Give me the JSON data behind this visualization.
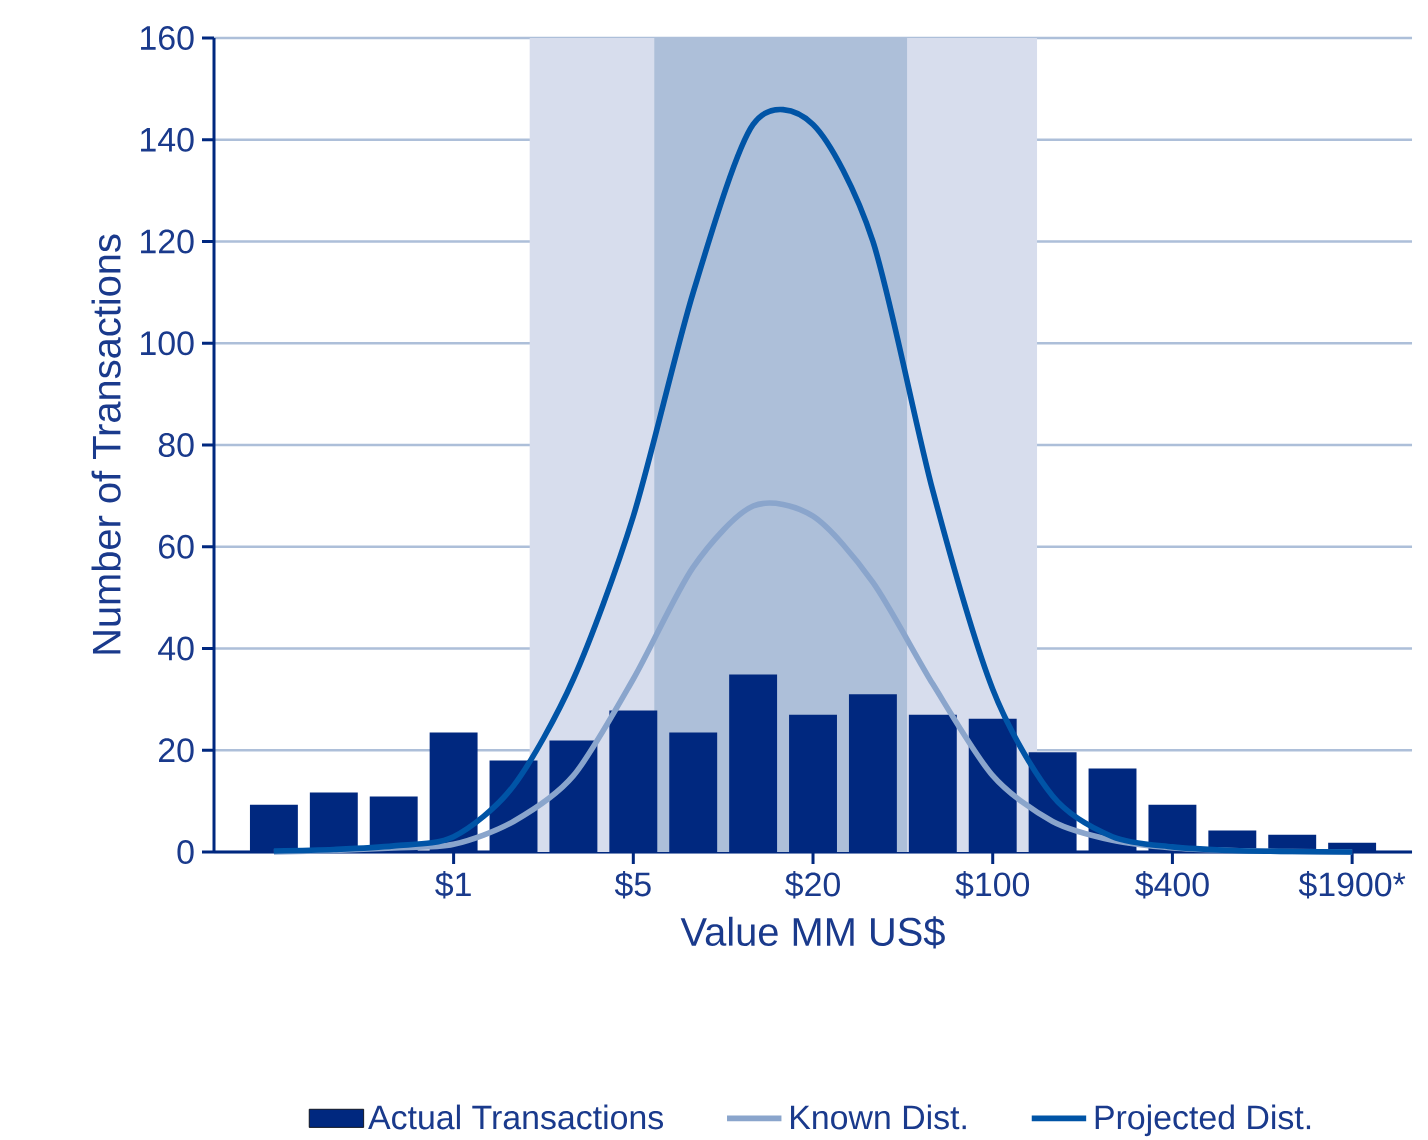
{
  "chart_data": {
    "type": "bar",
    "xlabel": "Value MM US$",
    "ylabel": "Number of Transactions",
    "categories": [
      null,
      null,
      null,
      "$1",
      null,
      null,
      "$5",
      null,
      null,
      "$20",
      null,
      null,
      "$100",
      null,
      null,
      "$400",
      null,
      null,
      "$1900*"
    ],
    "series": [
      {
        "name": "Actual Transactions",
        "color": "#00287f",
        "values": [
          9.3,
          11.7,
          10.9,
          23.5,
          18.0,
          21.9,
          27.8,
          23.5,
          34.9,
          27.0,
          31.0,
          27.0,
          26.2,
          19.6,
          16.4,
          9.3,
          4.2,
          3.4,
          1.8
        ]
      },
      {
        "name": "Known Dist.",
        "type": "line",
        "color": "#8aa5cc",
        "values": [
          0,
          0.3,
          0.8,
          1.5,
          6,
          15,
          34,
          56,
          68,
          66,
          53,
          33,
          15,
          6,
          2.3,
          0.8,
          0.3,
          0.1,
          0
        ]
      },
      {
        "name": "Projected Dist.",
        "type": "line",
        "color": "#0054a6",
        "values": [
          0.2,
          0.5,
          1.2,
          3,
          13,
          34,
          66,
          110,
          143,
          143,
          120,
          71,
          32,
          11,
          3,
          1,
          0.3,
          0.1,
          0
        ]
      }
    ],
    "ylim": [
      0,
      160
    ],
    "yticks": [
      0,
      20,
      40,
      60,
      80,
      100,
      120,
      140,
      160
    ],
    "grid": "y",
    "legend": "bottom"
  }
}
